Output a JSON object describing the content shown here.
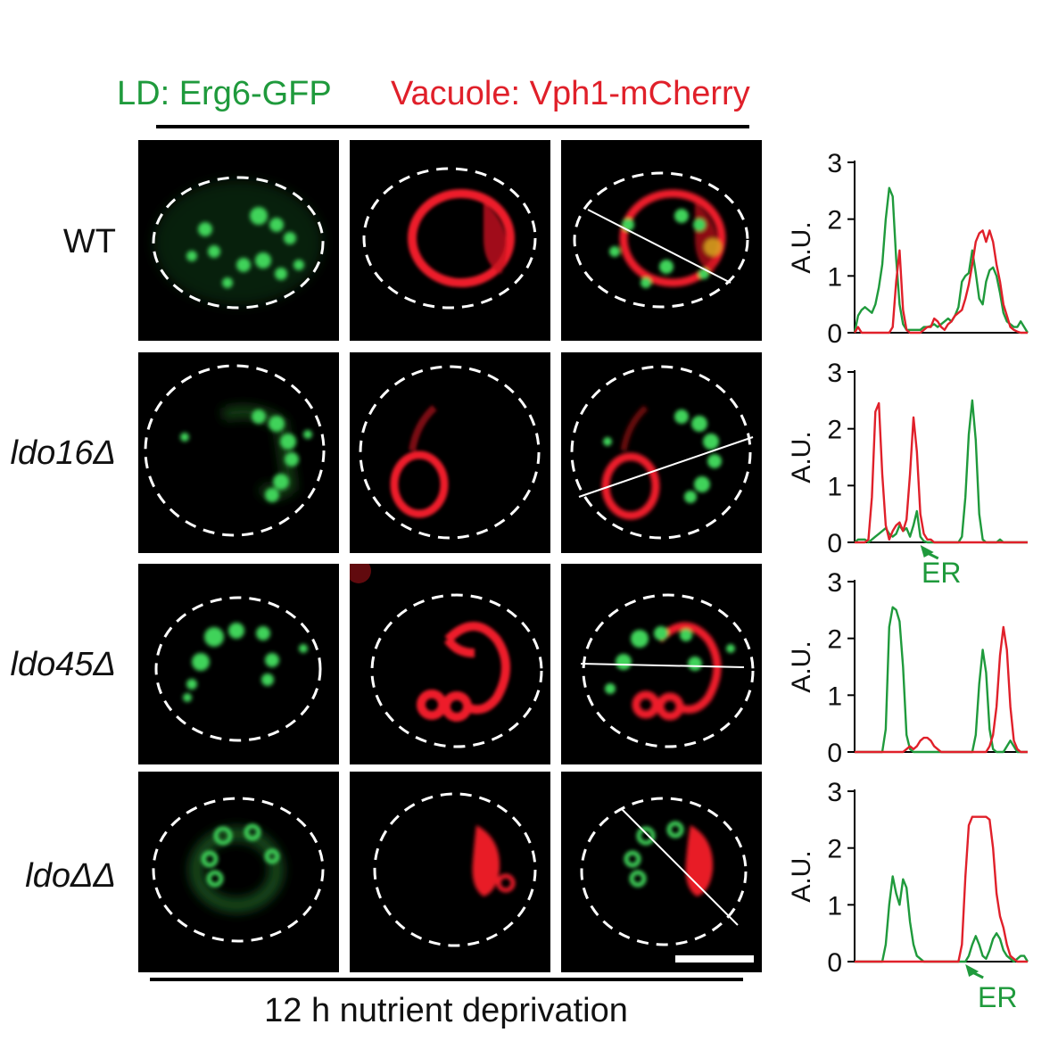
{
  "header": {
    "ld_label": "LD: Erg6-GFP",
    "vacuole_label": "Vacuole: Vph1-mCherry"
  },
  "footer": {
    "condition": "12 h nutrient deprivation"
  },
  "colors": {
    "gfp": "#1f9a3c",
    "mcherry": "#e0202a",
    "panel_bg": "#000000"
  },
  "rows": [
    {
      "label": "WT",
      "italic": false
    },
    {
      "label": "ldo16Δ",
      "italic": true
    },
    {
      "label": "ldo45Δ",
      "italic": true
    },
    {
      "label": "ldoΔΔ",
      "italic": true
    }
  ],
  "chart_data": [
    {
      "type": "line",
      "ylabel": "A.U.",
      "ylim": [
        0,
        3
      ],
      "yticks": [
        0,
        1,
        2,
        3
      ],
      "annotation": "",
      "x": [
        0,
        2,
        4,
        6,
        8,
        10,
        12,
        14,
        16,
        18,
        20,
        22,
        24,
        26,
        28,
        30,
        32,
        34,
        36,
        38,
        40,
        42,
        44,
        46,
        48,
        50,
        52,
        54,
        56,
        58,
        60,
        62,
        64,
        66,
        68,
        70,
        72,
        74,
        76,
        78,
        80,
        82,
        84,
        86,
        88,
        90,
        92,
        94,
        96,
        98,
        100
      ],
      "series": [
        {
          "name": "",
          "color": "green",
          "values": [
            0,
            0.3,
            0.4,
            0.45,
            0.4,
            0.35,
            0.5,
            0.8,
            1.2,
            2.0,
            2.55,
            2.4,
            1.3,
            0.5,
            0.15,
            0.05,
            0.05,
            0.05,
            0.05,
            0.05,
            0.1,
            0.1,
            0.12,
            0.15,
            0.1,
            0.15,
            0.2,
            0.25,
            0.2,
            0.3,
            0.45,
            0.9,
            1.0,
            1.05,
            1.45,
            1.05,
            0.6,
            0.5,
            0.9,
            1.1,
            1.15,
            1.0,
            0.7,
            0.35,
            0.2,
            0.15,
            0.1,
            0.1,
            0.2,
            0.1,
            0
          ]
        },
        {
          "name": "",
          "color": "red",
          "values": [
            0,
            0.1,
            0,
            0,
            0,
            0,
            0,
            0,
            0,
            0,
            0,
            0.1,
            0.9,
            1.45,
            0.4,
            0.05,
            0,
            0,
            0,
            0,
            0.05,
            0.1,
            0.1,
            0.25,
            0.2,
            0.1,
            0.05,
            0.15,
            0.2,
            0.3,
            0.35,
            0.4,
            0.6,
            0.85,
            1.2,
            1.6,
            1.75,
            1.8,
            1.6,
            1.8,
            1.6,
            1.2,
            0.9,
            0.5,
            0.3,
            0.1,
            0.05,
            0.02,
            0,
            0,
            0
          ]
        }
      ]
    },
    {
      "type": "line",
      "ylabel": "A.U.",
      "ylim": [
        0,
        3
      ],
      "yticks": [
        0,
        1,
        2,
        3
      ],
      "annotation": "ER",
      "annotation_x": 38,
      "x": [
        0,
        2,
        4,
        6,
        8,
        10,
        12,
        14,
        16,
        18,
        20,
        22,
        24,
        26,
        28,
        30,
        32,
        34,
        36,
        38,
        40,
        42,
        44,
        46,
        48,
        50,
        52,
        54,
        56,
        58,
        60,
        62,
        64,
        66,
        68,
        70,
        72,
        74,
        76,
        78,
        80,
        82,
        84,
        86,
        88,
        90,
        92,
        94,
        96,
        98,
        100
      ],
      "series": [
        {
          "name": "",
          "color": "green",
          "values": [
            0,
            0.05,
            0.05,
            0.05,
            0,
            0.05,
            0.1,
            0.15,
            0.2,
            0.25,
            0.15,
            0.1,
            0.15,
            0.3,
            0.2,
            0.25,
            0.1,
            0.3,
            0.55,
            0.1,
            0.02,
            0,
            0,
            0,
            0,
            0,
            0,
            0,
            0,
            0,
            0,
            0.1,
            0.8,
            1.9,
            2.5,
            1.8,
            0.5,
            0.05,
            0,
            0,
            0,
            0,
            0.05,
            0,
            0,
            0,
            0,
            0,
            0,
            0,
            0
          ]
        },
        {
          "name": "",
          "color": "red",
          "values": [
            0,
            0,
            0,
            0,
            0.05,
            0.8,
            2.3,
            2.45,
            1.2,
            0.3,
            0.05,
            0.2,
            0.3,
            0.35,
            0.2,
            0.4,
            1.2,
            2.2,
            1.6,
            0.5,
            0.15,
            0.05,
            0.05,
            0,
            0,
            0,
            0,
            0,
            0,
            0,
            0,
            0,
            0,
            0,
            0,
            0,
            0,
            0,
            0,
            0,
            0,
            0,
            0,
            0,
            0,
            0,
            0,
            0,
            0,
            0,
            0
          ]
        }
      ]
    },
    {
      "type": "line",
      "ylabel": "A.U.",
      "ylim": [
        0,
        3
      ],
      "yticks": [
        0,
        1,
        2,
        3
      ],
      "annotation": "",
      "x": [
        0,
        2,
        4,
        6,
        8,
        10,
        12,
        14,
        16,
        18,
        20,
        22,
        24,
        26,
        28,
        30,
        32,
        34,
        36,
        38,
        40,
        42,
        44,
        46,
        48,
        50,
        52,
        54,
        56,
        58,
        60,
        62,
        64,
        66,
        68,
        70,
        72,
        74,
        76,
        78,
        80,
        82,
        84,
        86,
        88,
        90,
        92,
        94,
        96,
        98,
        100
      ],
      "series": [
        {
          "name": "",
          "color": "green",
          "values": [
            0,
            0,
            0,
            0,
            0,
            0,
            0,
            0,
            0,
            0.4,
            2.2,
            2.55,
            2.5,
            2.3,
            1.5,
            0.3,
            0.05,
            0,
            0,
            0,
            0,
            0,
            0,
            0,
            0,
            0,
            0,
            0,
            0,
            0,
            0,
            0,
            0,
            0,
            0,
            0.3,
            1.2,
            1.8,
            1.4,
            0.4,
            0.05,
            0,
            0,
            0,
            0.1,
            0.2,
            0.1,
            0,
            0,
            0,
            0
          ]
        },
        {
          "name": "",
          "color": "red",
          "values": [
            0,
            0,
            0,
            0,
            0,
            0,
            0,
            0,
            0,
            0,
            0,
            0,
            0,
            0,
            0,
            0.05,
            0.1,
            0.05,
            0.1,
            0.2,
            0.25,
            0.25,
            0.2,
            0.1,
            0.05,
            0,
            0,
            0,
            0,
            0,
            0,
            0,
            0,
            0,
            0,
            0,
            0,
            0,
            0,
            0.1,
            0.3,
            0.8,
            1.7,
            2.2,
            1.8,
            0.8,
            0.2,
            0.05,
            0,
            0,
            0
          ]
        }
      ]
    },
    {
      "type": "line",
      "ylabel": "A.U.",
      "ylim": [
        0,
        3
      ],
      "yticks": [
        0,
        1,
        2,
        3
      ],
      "annotation": "ER",
      "annotation_x": 64,
      "x": [
        0,
        2,
        4,
        6,
        8,
        10,
        12,
        14,
        16,
        18,
        20,
        22,
        24,
        26,
        28,
        30,
        32,
        34,
        36,
        38,
        40,
        42,
        44,
        46,
        48,
        50,
        52,
        54,
        56,
        58,
        60,
        62,
        64,
        66,
        68,
        70,
        72,
        74,
        76,
        78,
        80,
        82,
        84,
        86,
        88,
        90,
        92,
        94,
        96,
        98,
        100
      ],
      "series": [
        {
          "name": "",
          "color": "green",
          "values": [
            0,
            0,
            0,
            0,
            0,
            0,
            0,
            0,
            0,
            0.3,
            1.0,
            1.5,
            1.2,
            1.0,
            1.45,
            1.3,
            0.7,
            0.3,
            0.1,
            0.05,
            0,
            0,
            0,
            0,
            0,
            0,
            0,
            0,
            0,
            0,
            0,
            0,
            0,
            0.1,
            0.3,
            0.45,
            0.3,
            0.1,
            0.05,
            0.2,
            0.4,
            0.5,
            0.4,
            0.2,
            0.1,
            0.05,
            0,
            0.05,
            0.1,
            0.1,
            0
          ]
        },
        {
          "name": "",
          "color": "red",
          "values": [
            0,
            0,
            0,
            0,
            0,
            0,
            0,
            0,
            0,
            0,
            0,
            0,
            0,
            0,
            0,
            0,
            0,
            0,
            0,
            0,
            0,
            0,
            0,
            0,
            0,
            0,
            0,
            0,
            0,
            0,
            0,
            0.3,
            1.5,
            2.4,
            2.55,
            2.55,
            2.55,
            2.55,
            2.55,
            2.5,
            2.0,
            1.2,
            0.8,
            0.6,
            0.3,
            0.1,
            0.05,
            0,
            0,
            0,
            0
          ]
        }
      ]
    }
  ]
}
